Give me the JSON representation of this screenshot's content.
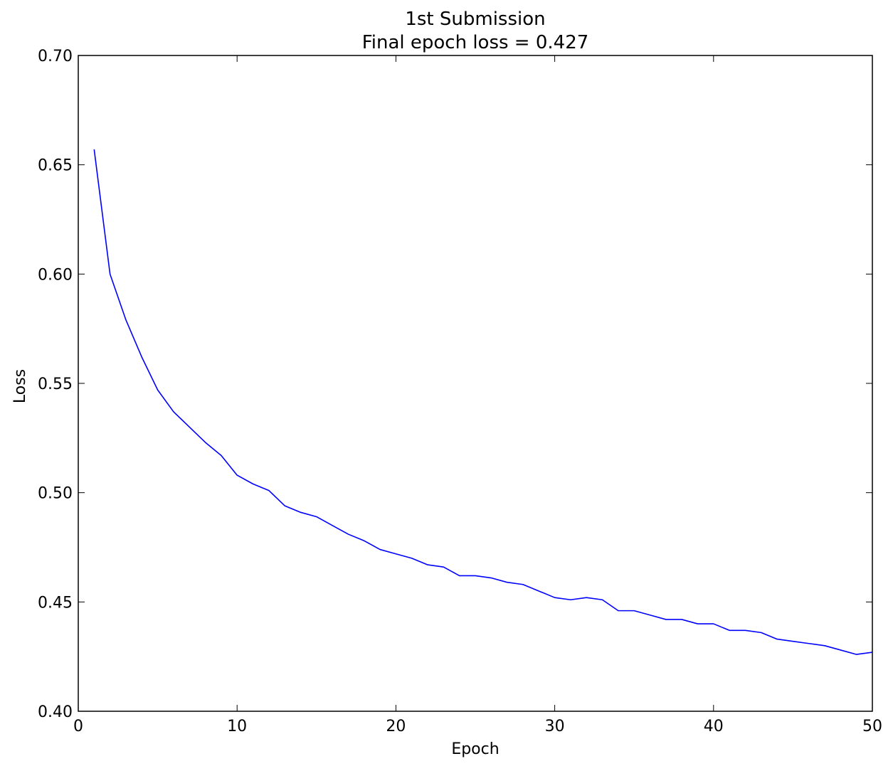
{
  "chart_data": {
    "type": "line",
    "title": "1st Submission",
    "subtitle": "Final epoch loss = 0.427",
    "xlabel": "Epoch",
    "ylabel": "Loss",
    "xlim": [
      0,
      50
    ],
    "ylim": [
      0.4,
      0.7
    ],
    "x_ticks": [
      0,
      10,
      20,
      30,
      40,
      50
    ],
    "y_ticks": [
      0.4,
      0.45,
      0.5,
      0.55,
      0.6,
      0.65,
      0.7
    ],
    "x_tick_labels": [
      "0",
      "10",
      "20",
      "30",
      "40",
      "50"
    ],
    "y_tick_labels": [
      "0.40",
      "0.45",
      "0.50",
      "0.55",
      "0.60",
      "0.65",
      "0.70"
    ],
    "grid": false,
    "legend": "none",
    "line_color": "#0000ff",
    "series": [
      {
        "x": [
          1,
          2,
          3,
          4,
          5,
          6,
          7,
          8,
          9,
          10,
          11,
          12,
          13,
          14,
          15,
          16,
          17,
          18,
          19,
          20,
          21,
          22,
          23,
          24,
          25,
          26,
          27,
          28,
          29,
          30,
          31,
          32,
          33,
          34,
          35,
          36,
          37,
          38,
          39,
          40,
          41,
          42,
          43,
          44,
          45,
          46,
          47,
          48,
          49,
          50
        ],
        "values": [
          0.657,
          0.6,
          0.579,
          0.562,
          0.547,
          0.537,
          0.53,
          0.523,
          0.517,
          0.508,
          0.504,
          0.501,
          0.494,
          0.491,
          0.489,
          0.485,
          0.481,
          0.478,
          0.474,
          0.472,
          0.47,
          0.467,
          0.466,
          0.462,
          0.462,
          0.461,
          0.459,
          0.458,
          0.455,
          0.452,
          0.451,
          0.452,
          0.451,
          0.446,
          0.446,
          0.444,
          0.442,
          0.442,
          0.44,
          0.44,
          0.437,
          0.437,
          0.436,
          0.433,
          0.432,
          0.431,
          0.43,
          0.428,
          0.426,
          0.427
        ]
      }
    ]
  }
}
